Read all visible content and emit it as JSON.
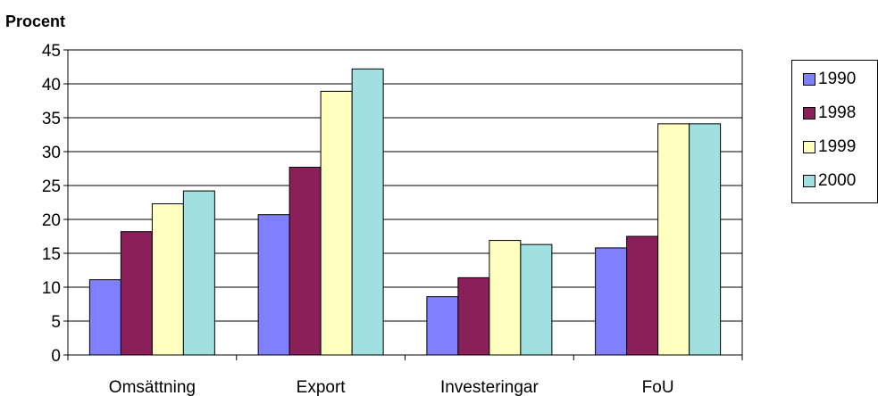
{
  "chart_data": {
    "type": "bar",
    "ylabel": "Procent",
    "categories": [
      "Omsättning",
      "Export",
      "Investeringar",
      "FoU"
    ],
    "series": [
      {
        "name": "1990",
        "color": "#8080ff",
        "values": [
          11.1,
          20.7,
          8.6,
          15.8
        ]
      },
      {
        "name": "1998",
        "color": "#8b1f5a",
        "values": [
          18.2,
          27.7,
          11.4,
          17.5
        ]
      },
      {
        "name": "1999",
        "color": "#ffffc0",
        "values": [
          22.3,
          38.9,
          16.9,
          34.1
        ]
      },
      {
        "name": "2000",
        "color": "#a0e0e0",
        "values": [
          24.2,
          42.2,
          16.3,
          34.1
        ]
      }
    ],
    "ylim": [
      0,
      45
    ],
    "yticks": [
      0,
      5,
      10,
      15,
      20,
      25,
      30,
      35,
      40,
      45
    ],
    "grid": true,
    "legend": "right"
  }
}
